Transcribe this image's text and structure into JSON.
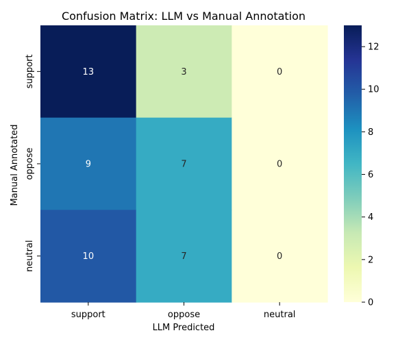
{
  "chart_data": {
    "type": "heatmap",
    "title": "Confusion Matrix: LLM vs Manual Annotation",
    "xlabel": "LLM Predicted",
    "ylabel": "Manual Annotated",
    "x_categories": [
      "support",
      "oppose",
      "neutral"
    ],
    "y_categories": [
      "support",
      "oppose",
      "neutral"
    ],
    "values": [
      [
        13,
        3,
        0
      ],
      [
        9,
        7,
        0
      ],
      [
        10,
        7,
        0
      ]
    ],
    "colormap": "YlGnBu",
    "color_range": [
      0,
      13
    ],
    "colorbar_ticks": [
      0,
      2,
      4,
      6,
      8,
      10,
      12
    ],
    "annotations": true
  }
}
